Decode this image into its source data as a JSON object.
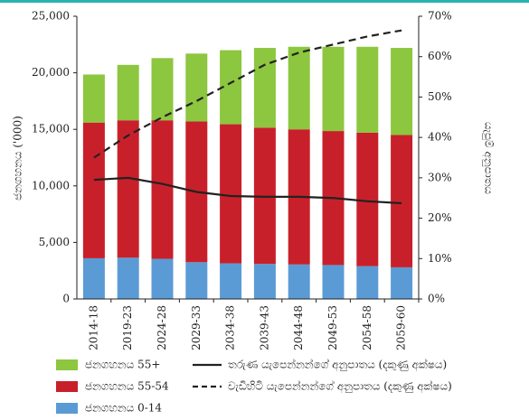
{
  "chart_data": {
    "type": "bar",
    "y_label": "ජනගහනය ('000)",
    "y2_label": "යැපුම් අනුපාතය",
    "categories": [
      "2014-18",
      "2019-23",
      "2024-28",
      "2029-33",
      "2034-38",
      "2039-43",
      "2044-48",
      "2049-53",
      "2054-58",
      "2059-60"
    ],
    "series": [
      {
        "name": "ජනගහනය 55+",
        "color": "#8dc63f",
        "values": [
          4250,
          4900,
          5500,
          6000,
          6550,
          7050,
          7300,
          7450,
          7600,
          7700
        ]
      },
      {
        "name": "ජනගහනය 55-54",
        "color": "#c8202a",
        "values": [
          12000,
          12150,
          12250,
          12450,
          12300,
          12050,
          11950,
          11850,
          11800,
          11700
        ]
      },
      {
        "name": "ජනගහනය 0-14",
        "color": "#5b9bd5",
        "values": [
          3600,
          3650,
          3550,
          3250,
          3150,
          3100,
          3050,
          3000,
          2900,
          2800
        ]
      },
      {
        "name": "තරුණ යැපෙන්නන්ගේ අනුපාතය (දකුණු අක්ෂය)",
        "type": "line",
        "axis": "y2",
        "color": "#222222",
        "dash": false,
        "values": [
          29.5,
          30,
          28.5,
          26.5,
          25.5,
          25.3,
          25.3,
          25,
          24.2,
          23.7
        ]
      },
      {
        "name": "වැඩිහිටි යැපෙන්නන්ගේ අනුපාතය (දකුණු අක්ෂය)",
        "type": "line",
        "axis": "y2",
        "color": "#222222",
        "dash": true,
        "values": [
          35,
          40.5,
          45,
          49,
          53.5,
          58,
          61,
          63,
          65,
          66.5
        ]
      }
    ],
    "stacked": true,
    "ylim": [
      0,
      25000
    ],
    "yticks": [
      0,
      {
        "value": 5000,
        "label": "5,000"
      },
      {
        "value": 10000,
        "label": "10,000"
      },
      {
        "value": 15000,
        "label": "15,000"
      },
      {
        "value": 20000,
        "label": "20,000"
      },
      {
        "value": 25000,
        "label": "25,000"
      }
    ],
    "y2lim": [
      0,
      70
    ],
    "y2ticks": [
      {
        "value": 0,
        "label": "0%"
      },
      {
        "value": 10,
        "label": "10%"
      },
      {
        "value": 20,
        "label": "20%"
      },
      {
        "value": 30,
        "label": "30%"
      },
      {
        "value": 40,
        "label": "40%"
      },
      {
        "value": 50,
        "label": "50%"
      },
      {
        "value": 60,
        "label": "60%"
      },
      {
        "value": 70,
        "label": "70%"
      }
    ],
    "grid": false
  }
}
